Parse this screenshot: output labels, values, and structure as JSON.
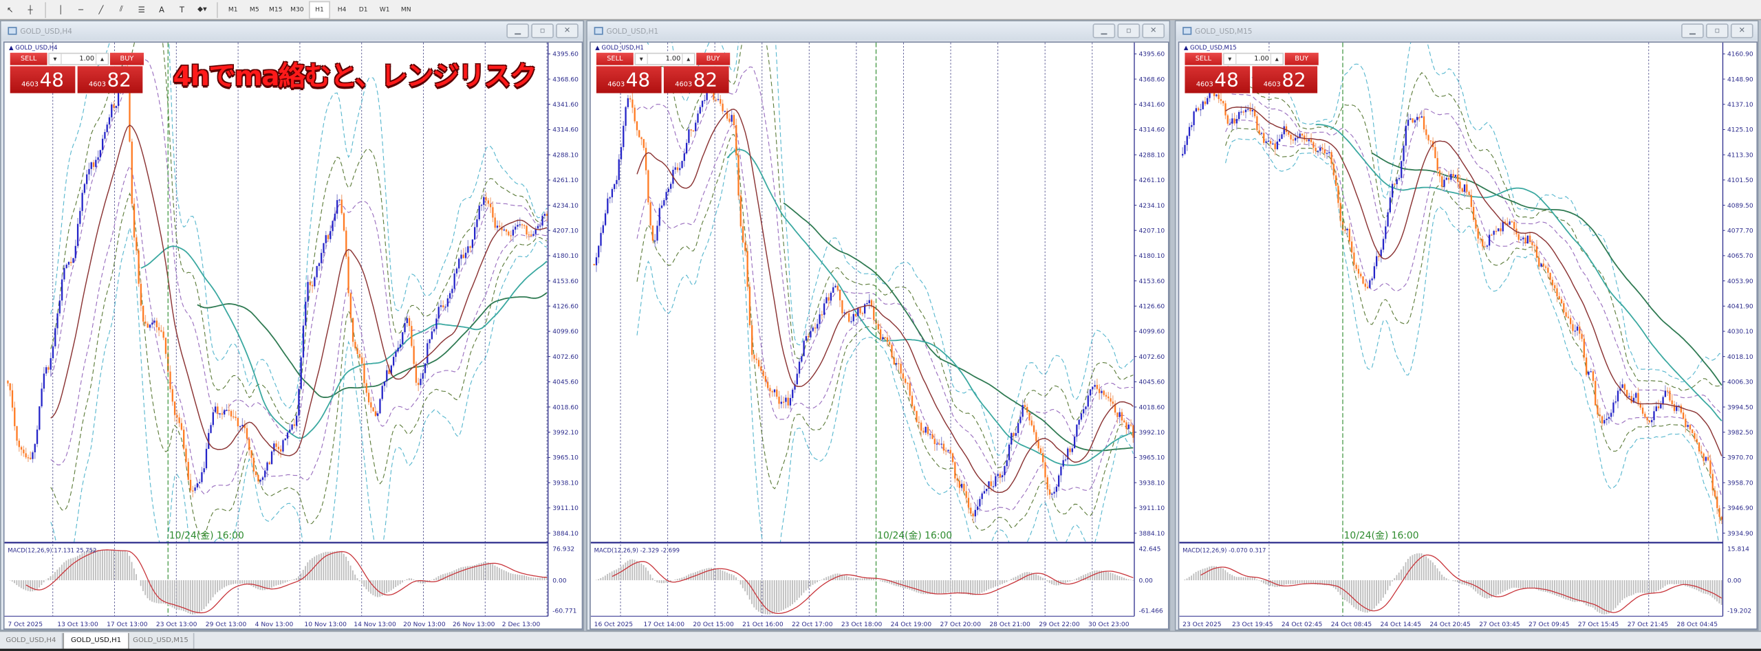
{
  "toolbar": {
    "tools": [
      {
        "icon": "cursor-arrow-icon",
        "glyph": "↖"
      },
      {
        "icon": "crosshair-icon",
        "glyph": "┼"
      },
      {
        "icon": "separator",
        "glyph": ""
      },
      {
        "icon": "vertical-line-icon",
        "glyph": "│"
      },
      {
        "icon": "horizontal-line-icon",
        "glyph": "─"
      },
      {
        "icon": "trendline-icon",
        "glyph": "╱"
      },
      {
        "icon": "equidistant-channel-icon",
        "glyph": "⫽"
      },
      {
        "icon": "fibonacci-icon",
        "glyph": "☰"
      },
      {
        "icon": "text-icon",
        "glyph": "A"
      },
      {
        "icon": "text-label-icon",
        "glyph": "T"
      },
      {
        "icon": "arrows-dropdown-icon",
        "glyph": "⬥▾"
      }
    ],
    "periods": [
      "M1",
      "M5",
      "M15",
      "M30",
      "H1",
      "H4",
      "D1",
      "W1",
      "MN"
    ],
    "active_period": "H1"
  },
  "charts": [
    {
      "title": "GOLD_USD,H4",
      "symbol_label": "GOLD_USD,H4",
      "trade": {
        "sell": "SELL",
        "buy": "BUY",
        "lot": "1.00",
        "sell_big": "4603",
        "sell_pips": "48",
        "buy_big": "4603",
        "buy_pips": "82"
      },
      "annotation": "4hでma絡むと、レンジリスク",
      "y_labels": [
        "4395.60",
        "4368.60",
        "4341.60",
        "4314.60",
        "4288.10",
        "4261.10",
        "4234.10",
        "4207.10",
        "4180.10",
        "4153.60",
        "4126.60",
        "4099.60",
        "4072.60",
        "4045.60",
        "4018.60",
        "3992.10",
        "3965.10",
        "3938.10",
        "3911.10",
        "3884.10"
      ],
      "x_labels": [
        "7 Oct 2025",
        "13 Oct 13:00",
        "17 Oct 13:00",
        "23 Oct 13:00",
        "29 Oct 13:00",
        "4 Nov 13:00",
        "10 Nov 13:00",
        "14 Nov 13:00",
        "20 Nov 13:00",
        "26 Nov 13:00",
        "2 Dec 13:00"
      ],
      "macd": {
        "label": "MACD(12,26,9) 17.131 25.752",
        "top": "76.932",
        "zero": "0.00",
        "bottom": "-60.771"
      },
      "marker_label": "10/24(金) 16:00",
      "chart_data": {
        "type": "candlestick",
        "bars": 240,
        "marker_bar": 71,
        "close_keypoints": [
          [
            0,
            4043
          ],
          [
            5,
            3990
          ],
          [
            10,
            3960
          ],
          [
            17,
            4060
          ],
          [
            27,
            4180
          ],
          [
            37,
            4280
          ],
          [
            47,
            4343
          ],
          [
            52,
            4390
          ],
          [
            56,
            4200
          ],
          [
            60,
            4115
          ],
          [
            67,
            4100
          ],
          [
            75,
            4000
          ],
          [
            82,
            3930
          ],
          [
            85,
            3948
          ],
          [
            92,
            4010
          ],
          [
            97,
            4020
          ],
          [
            105,
            3990
          ],
          [
            112,
            3935
          ],
          [
            120,
            3980
          ],
          [
            127,
            4008
          ],
          [
            134,
            4150
          ],
          [
            142,
            4200
          ],
          [
            147,
            4235
          ],
          [
            154,
            4080
          ],
          [
            162,
            4008
          ],
          [
            169,
            4060
          ],
          [
            177,
            4104
          ],
          [
            182,
            4043
          ],
          [
            187,
            4090
          ],
          [
            192,
            4127
          ],
          [
            202,
            4175
          ],
          [
            212,
            4247
          ],
          [
            217,
            4215
          ],
          [
            222,
            4211
          ],
          [
            229,
            4200
          ],
          [
            237,
            4223
          ],
          [
            239,
            4215
          ]
        ]
      }
    },
    {
      "title": "GOLD_USD,H1",
      "symbol_label": "GOLD_USD,H1",
      "trade": {
        "sell": "SELL",
        "buy": "BUY",
        "lot": "1.00",
        "sell_big": "4603",
        "sell_pips": "48",
        "buy_big": "4603",
        "buy_pips": "82"
      },
      "y_labels": [
        "4395.60",
        "4368.60",
        "4341.60",
        "4314.60",
        "4288.10",
        "4261.10",
        "4234.10",
        "4207.10",
        "4180.10",
        "4153.60",
        "4126.60",
        "4099.60",
        "4072.60",
        "4045.60",
        "4018.60",
        "3992.10",
        "3965.10",
        "3938.10",
        "3911.10",
        "3884.10"
      ],
      "x_labels": [
        "16 Oct 2025",
        "17 Oct 14:00",
        "20 Oct 15:00",
        "21 Oct 16:00",
        "22 Oct 17:00",
        "23 Oct 18:00",
        "24 Oct 19:00",
        "27 Oct 20:00",
        "28 Oct 21:00",
        "29 Oct 22:00",
        "30 Oct 23:00"
      ],
      "macd": {
        "label": "MACD(12,26,9) -2.329 -2.699",
        "top": "42.645",
        "zero": "0.00",
        "bottom": "-61.466"
      },
      "marker_label": "10/24(金) 16:00",
      "chart_data": {
        "type": "candlestick",
        "bars": 240,
        "marker_bar": 125,
        "close_keypoints": [
          [
            0,
            4175
          ],
          [
            8,
            4250
          ],
          [
            16,
            4343
          ],
          [
            21,
            4300
          ],
          [
            26,
            4200
          ],
          [
            31,
            4240
          ],
          [
            36,
            4270
          ],
          [
            43,
            4320
          ],
          [
            51,
            4355
          ],
          [
            61,
            4330
          ],
          [
            66,
            4200
          ],
          [
            71,
            4067
          ],
          [
            78,
            4030
          ],
          [
            86,
            4020
          ],
          [
            96,
            4100
          ],
          [
            106,
            4139
          ],
          [
            113,
            4110
          ],
          [
            121,
            4127
          ],
          [
            128,
            4090
          ],
          [
            136,
            4055
          ],
          [
            146,
            4000
          ],
          [
            156,
            3971
          ],
          [
            163,
            3930
          ],
          [
            168,
            3899
          ],
          [
            176,
            3935
          ],
          [
            181,
            3950
          ],
          [
            186,
            3990
          ],
          [
            191,
            4020
          ],
          [
            198,
            3970
          ],
          [
            203,
            3923
          ],
          [
            211,
            3970
          ],
          [
            216,
            4008
          ],
          [
            221,
            4030
          ],
          [
            226,
            4032
          ],
          [
            233,
            4010
          ],
          [
            238,
            3996
          ],
          [
            239,
            3990
          ]
        ]
      }
    },
    {
      "title": "GOLD_USD,M15",
      "symbol_label": "GOLD_USD,M15",
      "trade": {
        "sell": "SELL",
        "buy": "BUY",
        "lot": "1.00",
        "sell_big": "4603",
        "sell_pips": "48",
        "buy_big": "4603",
        "buy_pips": "82"
      },
      "y_labels": [
        "4160.90",
        "4148.90",
        "4137.10",
        "4125.10",
        "4113.30",
        "4101.50",
        "4089.50",
        "4077.70",
        "4065.70",
        "4053.90",
        "4041.90",
        "4030.10",
        "4018.10",
        "4006.30",
        "3994.50",
        "3982.50",
        "3970.70",
        "3958.70",
        "3946.90",
        "3934.90"
      ],
      "x_labels": [
        "23 Oct 2025",
        "23 Oct 19:45",
        "24 Oct 02:45",
        "24 Oct 08:45",
        "24 Oct 14:45",
        "24 Oct 20:45",
        "27 Oct 03:45",
        "27 Oct 09:45",
        "27 Oct 15:45",
        "27 Oct 21:45",
        "28 Oct 04:45"
      ],
      "macd": {
        "label": "MACD(12,26,9) -0.070 0.317",
        "top": "15.814",
        "zero": "0.00",
        "bottom": "-19.202"
      },
      "marker_label": "10/24(金) 16:00",
      "chart_data": {
        "type": "candlestick",
        "bars": 240,
        "marker_bar": 71,
        "close_keypoints": [
          [
            0,
            4116
          ],
          [
            7,
            4135
          ],
          [
            15,
            4143
          ],
          [
            22,
            4130
          ],
          [
            30,
            4138
          ],
          [
            35,
            4120
          ],
          [
            40,
            4116
          ],
          [
            47,
            4125
          ],
          [
            55,
            4121
          ],
          [
            60,
            4115
          ],
          [
            65,
            4110
          ],
          [
            72,
            4080
          ],
          [
            77,
            4058
          ],
          [
            82,
            4050
          ],
          [
            87,
            4063
          ],
          [
            95,
            4100
          ],
          [
            100,
            4127
          ],
          [
            105,
            4132
          ],
          [
            110,
            4115
          ],
          [
            115,
            4100
          ],
          [
            120,
            4105
          ],
          [
            125,
            4100
          ],
          [
            132,
            4069
          ],
          [
            140,
            4080
          ],
          [
            145,
            4085
          ],
          [
            152,
            4075
          ],
          [
            160,
            4060
          ],
          [
            165,
            4050
          ],
          [
            170,
            4040
          ],
          [
            175,
            4032
          ],
          [
            180,
            4010
          ],
          [
            185,
            3986
          ],
          [
            190,
            3995
          ],
          [
            195,
            4005
          ],
          [
            200,
            4000
          ],
          [
            205,
            3990
          ],
          [
            210,
            3992
          ],
          [
            215,
            3998
          ],
          [
            220,
            3995
          ],
          [
            225,
            3985
          ],
          [
            232,
            3970
          ],
          [
            239,
            3940
          ]
        ]
      }
    }
  ],
  "tabs": [
    {
      "label": "GOLD_USD,H4",
      "active": false
    },
    {
      "label": "GOLD_USD,H1",
      "active": true
    },
    {
      "label": "GOLD_USD,M15",
      "active": false
    }
  ],
  "colors": {
    "bull": "#2424c8",
    "bear": "#ff7a22",
    "bull_wick": "#9c9cd6",
    "bear_wick": "#f2b088",
    "ma_fast": "#8c3636",
    "ma_mid": "#3aa8a0",
    "ma_slow": "#2f7a52",
    "band1": "#9a6fbf",
    "band2": "#5e7d3c",
    "band3": "#5ab8cf",
    "macd_hist": "#bdbdbd",
    "macd_signal": "#c8343a",
    "marker": "#2e8b2e",
    "axis": "#2c2c8c"
  }
}
